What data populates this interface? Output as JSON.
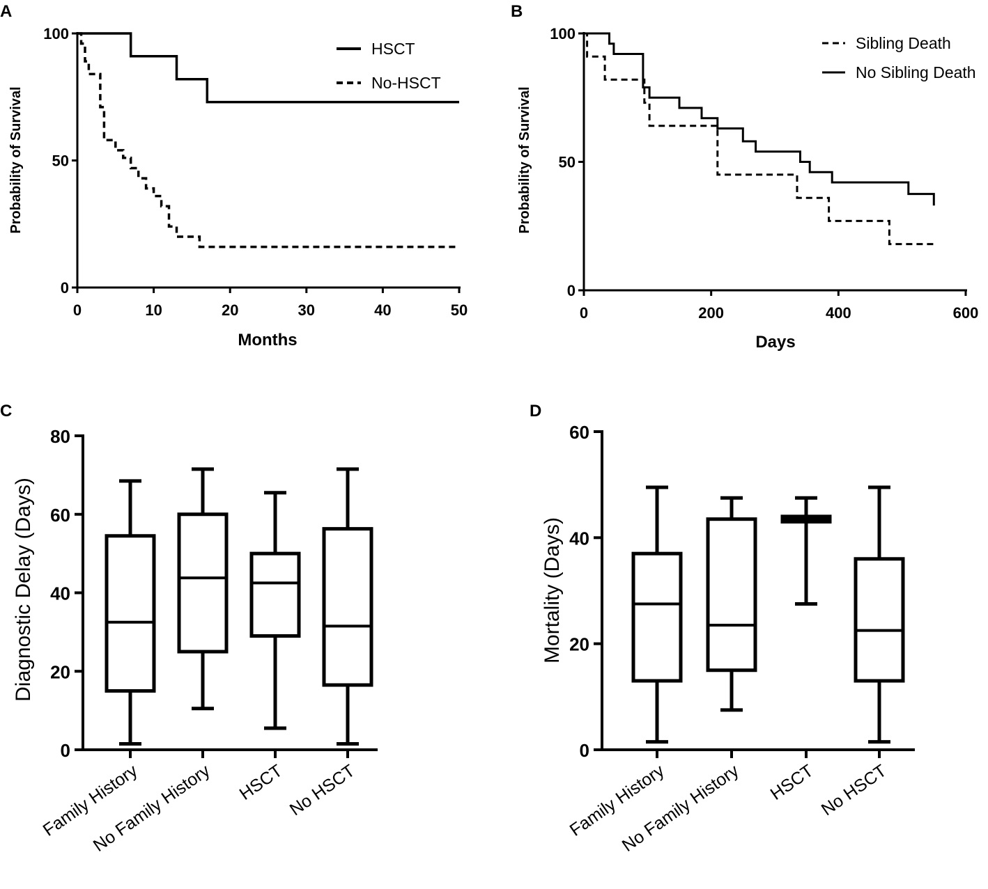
{
  "chart_data": [
    {
      "panel": "A",
      "type": "line",
      "subtype": "kaplan-meier",
      "title": "",
      "xlabel": "Months",
      "ylabel": "Probability of Survival",
      "xlim": [
        0,
        50
      ],
      "ylim": [
        0,
        100
      ],
      "xticks": [
        0,
        10,
        20,
        30,
        40,
        50
      ],
      "yticks": [
        0,
        50,
        100
      ],
      "legend_position": "top-right",
      "series": [
        {
          "name": "HSCT",
          "style": "solid",
          "x": [
            0,
            7,
            7,
            13,
            13,
            17,
            17,
            50
          ],
          "y": [
            100,
            100,
            91,
            91,
            82,
            82,
            73,
            73
          ]
        },
        {
          "name": "No-HSCT",
          "style": "dashed",
          "x": [
            0,
            0.5,
            0.5,
            1,
            1,
            1.5,
            1.5,
            3,
            3,
            3.5,
            3.5,
            5,
            5,
            6,
            6,
            7,
            7,
            8,
            8,
            9,
            9,
            10,
            10,
            11,
            11,
            12,
            12,
            13,
            13,
            16,
            16,
            50
          ],
          "y": [
            100,
            100,
            96,
            96,
            89,
            89,
            84,
            84,
            71,
            71,
            58,
            58,
            54,
            54,
            51,
            51,
            47,
            47,
            43,
            43,
            39,
            39,
            36,
            36,
            32,
            32,
            24,
            24,
            20,
            20,
            16,
            16
          ]
        }
      ]
    },
    {
      "panel": "B",
      "type": "line",
      "subtype": "kaplan-meier",
      "title": "",
      "xlabel": "Days",
      "ylabel": "Probability of Survival",
      "xlim": [
        0,
        600
      ],
      "ylim": [
        0,
        100
      ],
      "xticks": [
        0,
        200,
        400,
        600
      ],
      "yticks": [
        0,
        50,
        100
      ],
      "legend_position": "top-right",
      "series": [
        {
          "name": "Sibling Death",
          "style": "dashed",
          "x": [
            0,
            5,
            5,
            33,
            33,
            95,
            95,
            103,
            103,
            210,
            210,
            335,
            335,
            385,
            385,
            480,
            480,
            550
          ],
          "y": [
            100,
            100,
            91,
            91,
            82,
            82,
            73,
            73,
            64,
            64,
            45,
            45,
            36,
            36,
            27,
            27,
            18,
            18
          ]
        },
        {
          "name": "No Sibling Death",
          "style": "solid",
          "x": [
            0,
            40,
            40,
            47,
            47,
            93,
            93,
            103,
            103,
            150,
            150,
            185,
            185,
            210,
            210,
            250,
            250,
            270,
            270,
            340,
            340,
            355,
            355,
            390,
            390,
            510,
            510,
            550,
            550
          ],
          "y": [
            100,
            100,
            96,
            96,
            92,
            92,
            79,
            79,
            75,
            75,
            71,
            71,
            67,
            67,
            63,
            63,
            58,
            58,
            54,
            54,
            50,
            50,
            46,
            46,
            42,
            42,
            37.5,
            37.5,
            33
          ]
        }
      ]
    },
    {
      "panel": "C",
      "type": "box",
      "title": "",
      "xlabel": "",
      "ylabel": "Diagnostic Delay (Days)",
      "ylim": [
        0,
        80
      ],
      "yticks": [
        0,
        20,
        40,
        60,
        80
      ],
      "categories": [
        "Family History",
        "No Family History",
        "HSCT",
        "No HSCT"
      ],
      "boxes": [
        {
          "min": 1.5,
          "q1": 15,
          "median": 32.5,
          "q3": 54.5,
          "max": 68.5
        },
        {
          "min": 10.5,
          "q1": 25,
          "median": 43.8,
          "q3": 60,
          "max": 71.5
        },
        {
          "min": 5.5,
          "q1": 29,
          "median": 42.5,
          "q3": 50,
          "max": 65.5
        },
        {
          "min": 1.5,
          "q1": 16.5,
          "median": 31.5,
          "q3": 56.3,
          "max": 71.5
        }
      ]
    },
    {
      "panel": "D",
      "type": "box",
      "title": "",
      "xlabel": "",
      "ylabel": "Mortality (Days)",
      "ylim": [
        0,
        60
      ],
      "yticks": [
        0,
        20,
        40,
        60
      ],
      "categories": [
        "Family History",
        "No Family History",
        "HSCT",
        "No HSCT"
      ],
      "boxes": [
        {
          "min": 1.5,
          "q1": 13,
          "median": 27.5,
          "q3": 37,
          "max": 49.5
        },
        {
          "min": 7.5,
          "q1": 15,
          "median": 23.5,
          "q3": 43.5,
          "max": 47.5
        },
        {
          "min": 27.5,
          "q1": 43,
          "median": 43.5,
          "q3": 44,
          "max": 47.5
        },
        {
          "min": 1.5,
          "q1": 13,
          "median": 22.5,
          "q3": 36,
          "max": 49.5
        }
      ]
    }
  ]
}
